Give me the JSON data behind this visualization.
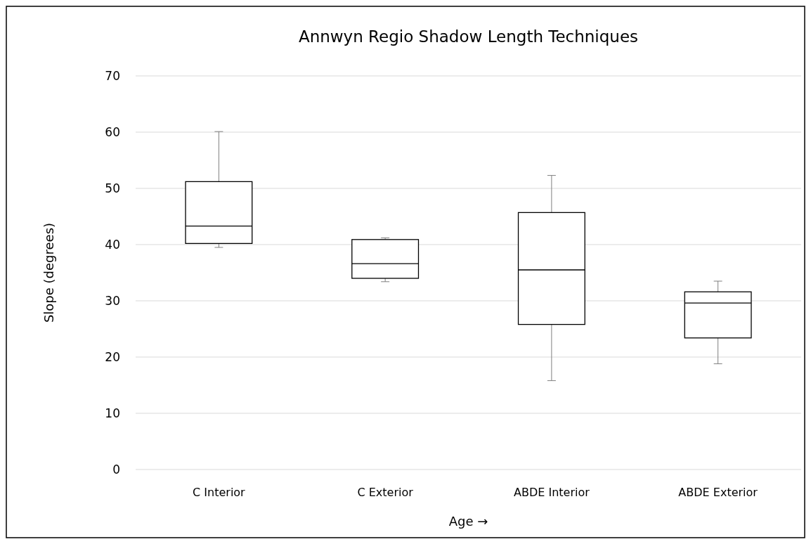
{
  "chart_data": {
    "type": "box",
    "title": "Annwyn Regio Shadow Length Techniques",
    "xlabel": "Age →",
    "ylabel": "Slope (degrees)",
    "categories": [
      "C Interior",
      "C Exterior",
      "ABDE Interior",
      "ABDE Exterior"
    ],
    "boxes": [
      {
        "low": 39.5,
        "q1": 40.2,
        "median": 43.3,
        "q3": 51.2,
        "high": 60.1
      },
      {
        "low": 33.4,
        "q1": 34.0,
        "median": 36.6,
        "q3": 40.9,
        "high": 41.2
      },
      {
        "low": 15.8,
        "q1": 25.8,
        "median": 35.5,
        "q3": 45.7,
        "high": 52.3
      },
      {
        "low": 18.8,
        "q1": 23.4,
        "median": 29.6,
        "q3": 31.6,
        "high": 33.5
      }
    ],
    "color": "#000000",
    "ylim": [
      0,
      70
    ],
    "yticks": [
      0,
      10,
      20,
      30,
      40,
      50,
      60,
      70
    ],
    "grid": "y"
  }
}
